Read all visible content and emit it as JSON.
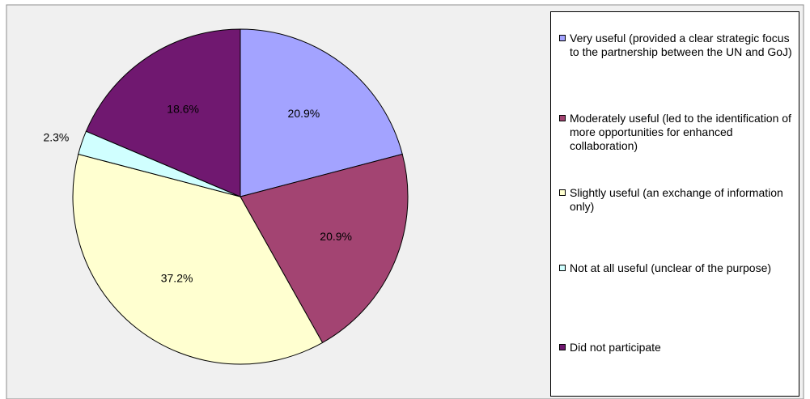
{
  "chart_data": {
    "type": "pie",
    "categories": [
      "Very useful (provided a clear strategic focus to the partnership between the UN and GoJ)",
      "Moderately useful (led to the identification of more opportunities for enhanced collaboration)",
      "Slightly useful (an exchange of information only)",
      "Not at all useful (unclear of the purpose)",
      "Did not participate"
    ],
    "values": [
      20.9,
      20.9,
      37.2,
      2.3,
      18.6
    ],
    "value_labels": [
      "20.9%",
      "20.9%",
      "37.2%",
      "2.3%",
      "18.6%"
    ],
    "colors": [
      "#a3a3ff",
      "#a34472",
      "#ffffd0",
      "#d0ffff",
      "#701870"
    ],
    "legend": "right"
  }
}
